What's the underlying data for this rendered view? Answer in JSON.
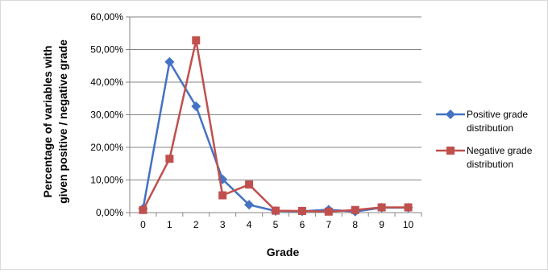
{
  "chart_data": {
    "type": "line",
    "title": "",
    "xlabel": "Grade",
    "ylabel_lines": [
      "Percentage of variables with",
      "given positive / negative grade"
    ],
    "categories": [
      "0",
      "1",
      "2",
      "3",
      "4",
      "5",
      "6",
      "7",
      "8",
      "9",
      "10"
    ],
    "y_ticks": [
      "0,00%",
      "10,00%",
      "20,00%",
      "30,00%",
      "40,00%",
      "50,00%",
      "60,00%"
    ],
    "ylim": [
      0,
      60
    ],
    "grid": "horizontal",
    "legend_position": "right",
    "series": [
      {
        "name_lines": [
          "Positive grade",
          "distribution"
        ],
        "color": "#4472C4",
        "marker": "diamond",
        "values": [
          1.2,
          46.2,
          32.6,
          10.2,
          2.4,
          0.5,
          0.4,
          0.9,
          0.3,
          1.5,
          1.5
        ]
      },
      {
        "name_lines": [
          "Negative grade",
          "distribution"
        ],
        "color": "#C0504D",
        "marker": "square",
        "values": [
          0.8,
          16.5,
          52.8,
          5.3,
          8.6,
          0.6,
          0.5,
          0.3,
          0.8,
          1.6,
          1.6
        ]
      }
    ]
  }
}
